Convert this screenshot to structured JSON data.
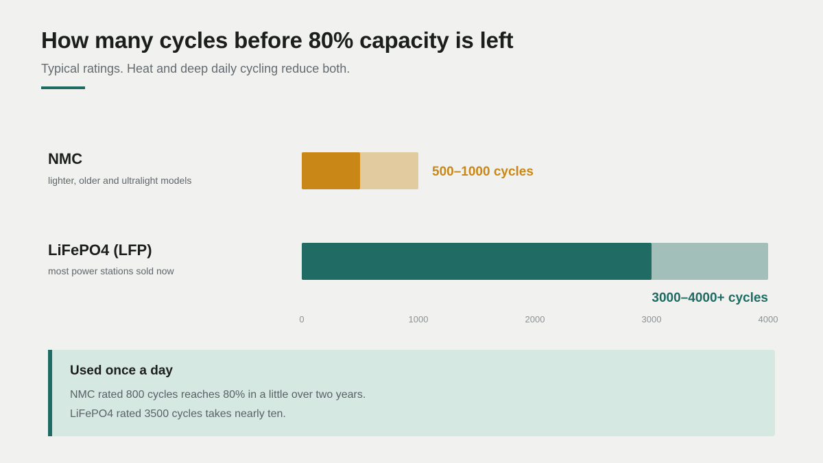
{
  "header": {
    "title": "How many cycles before 80% capacity is left",
    "subtitle": "Typical ratings. Heat and deep daily cycling reduce both."
  },
  "chart_data": {
    "type": "bar",
    "orientation": "horizontal",
    "categories": [
      "NMC",
      "LiFePO4 (LFP)"
    ],
    "descriptions": [
      "lighter, older and ultralight models",
      "most power stations sold now"
    ],
    "series": [
      {
        "values": [
          500,
          3000
        ]
      },
      {
        "values": [
          1000,
          4000
        ]
      }
    ],
    "value_labels": [
      "500–1000 cycles",
      "3000–4000+ cycles"
    ],
    "xlim": [
      0,
      4000
    ],
    "xticks": [
      0,
      1000,
      2000,
      3000,
      4000
    ],
    "tick_labels": [
      "0",
      "1000",
      "2000",
      "3000",
      "4000"
    ],
    "grid": false,
    "colors": {
      "NMC": {
        "low": "#c98718",
        "high": "#e3cba0",
        "label": "#c98718"
      },
      "LiFePO4 (LFP)": {
        "low": "#206c64",
        "high": "#a2bfb9",
        "label": "#1f6b63"
      }
    }
  },
  "note": {
    "title": "Used once a day",
    "lines": [
      "NMC rated 800 cycles reaches 80% in a little over two years.",
      "LiFePO4 rated 3500 cycles takes nearly ten."
    ]
  }
}
